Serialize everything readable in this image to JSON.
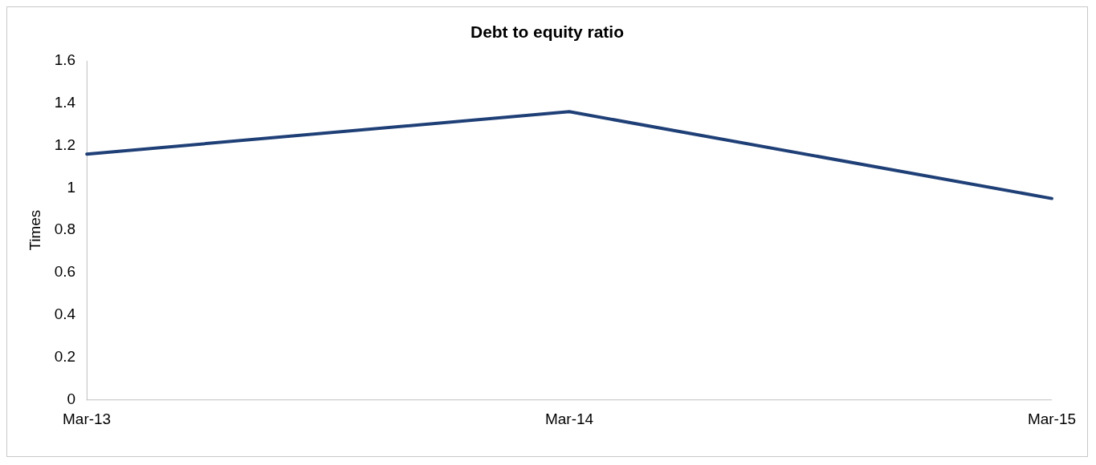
{
  "chart_data": {
    "type": "line",
    "title": "Debt to equity ratio",
    "ylabel": "Times",
    "categories": [
      "Mar-13",
      "Mar-14",
      "Mar-15"
    ],
    "series": [
      {
        "color": "#1f3f77",
        "values": [
          1.16,
          1.36,
          0.95
        ]
      }
    ],
    "ylim": [
      0,
      1.6
    ],
    "yticks": [
      0,
      0.2,
      0.4,
      0.6,
      0.8,
      1,
      1.2,
      1.4,
      1.6
    ],
    "grid": false,
    "legend": false,
    "marker": "none",
    "line_style": "solid"
  }
}
